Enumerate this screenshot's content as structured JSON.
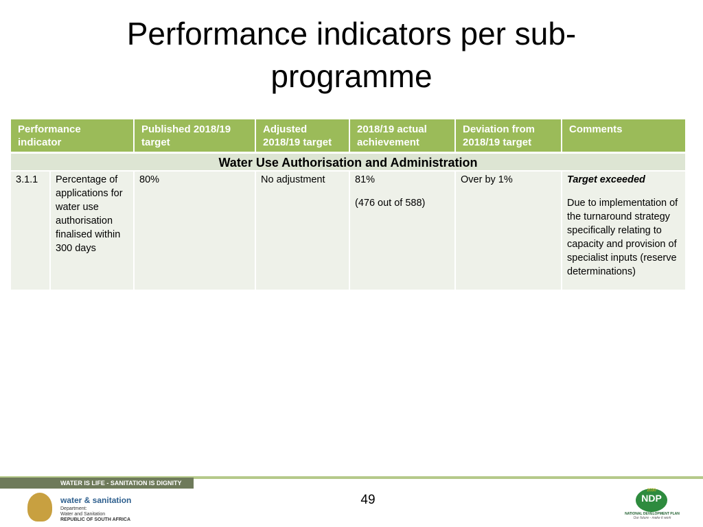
{
  "title": "Performance indicators per sub-programme",
  "table": {
    "header": [
      "Performance indicator",
      "Published 2018/19 target",
      "Adjusted 2018/19 target",
      "2018/19 actual achievement",
      "Deviation from 2018/19 target",
      "Comments"
    ],
    "section": "Water Use Authorisation and Administration",
    "rows": [
      {
        "id": "3.1.1",
        "indicator": "Percentage of applications for water use authorisation finalised within 300 days",
        "published_target": "80%",
        "adjusted_target": "No adjustment",
        "actual": [
          "81%",
          "(476 out of 588)"
        ],
        "deviation": "Over by 1%",
        "comments": [
          "Target exceeded",
          "Due to implementation of the turnaround strategy specifically relating to capacity and provision of specialist inputs (reserve determinations)"
        ]
      }
    ]
  },
  "footer": {
    "slogan": "WATER IS LIFE - SANITATION IS DIGNITY",
    "brand": "water & sanitation",
    "department": [
      "Department:",
      "Water and Sanitation",
      "REPUBLIC OF SOUTH AFRICA"
    ],
    "page": "49",
    "ndp": {
      "year": "2030",
      "name": "NDP",
      "full": "NATIONAL DEVELOPMENT PLAN",
      "motto": "Our future - make it work"
    }
  }
}
